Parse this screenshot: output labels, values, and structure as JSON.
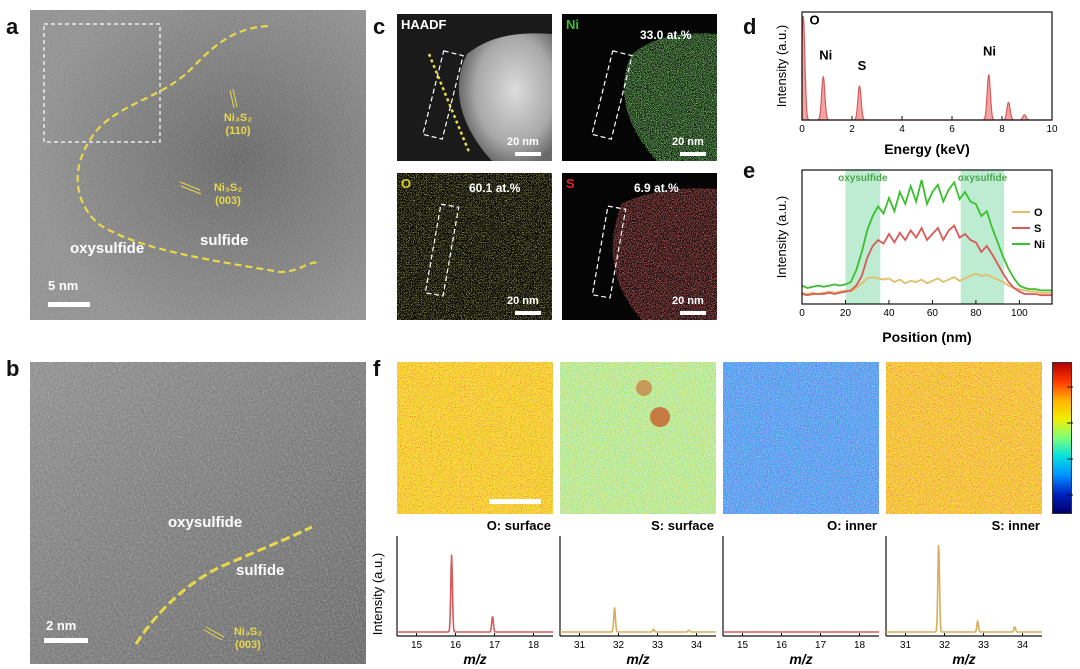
{
  "panels": {
    "a": {
      "label": "a",
      "ni3s2_a": "Ni₃S₂",
      "hkl_a": "(110)",
      "ni3s2_b": "Ni₃S₂",
      "hkl_b": "(003)",
      "oxysulfide": "oxysulfide",
      "sulfide": "sulfide",
      "scale": "5 nm"
    },
    "b": {
      "label": "b",
      "oxysulfide": "oxysulfide",
      "sulfide": "sulfide",
      "scale": "2 nm",
      "ni3s2": "Ni₃S₂",
      "hkl": "(003)"
    },
    "c": {
      "label": "c",
      "haadf": "HAADF",
      "ni": "Ni",
      "ni_pct": "33.0 at.%",
      "o": "O",
      "o_pct": "60.1 at.%",
      "s": "S",
      "s_pct": "6.9 at.%",
      "scale": "20 nm"
    },
    "d": {
      "label": "d"
    },
    "e": {
      "label": "e"
    },
    "f": {
      "label": "f"
    }
  },
  "chart_data": [
    {
      "panel": "d",
      "type": "line",
      "xlabel": "Energy (keV)",
      "ylabel": "Intensity (a.u.)",
      "xlim": [
        0,
        10
      ],
      "xticks": [
        0,
        2,
        4,
        6,
        8,
        10
      ],
      "series": [
        {
          "color": "#d85a5a",
          "peaks": [
            {
              "x": 0.05,
              "h": 1.0
            },
            {
              "x": 0.85,
              "h": 0.42
            },
            {
              "x": 2.3,
              "h": 0.33
            },
            {
              "x": 7.47,
              "h": 0.44
            },
            {
              "x": 8.26,
              "h": 0.17
            },
            {
              "x": 8.9,
              "h": 0.05
            }
          ]
        }
      ],
      "annotations": [
        {
          "text": "O",
          "x": 0.5,
          "y": 0.92
        },
        {
          "text": "Ni",
          "x": 0.95,
          "y": 0.58
        },
        {
          "text": "S",
          "x": 2.4,
          "y": 0.48
        },
        {
          "text": "Ni",
          "x": 7.5,
          "y": 0.62
        }
      ]
    },
    {
      "panel": "e",
      "type": "line",
      "xlabel": "Position (nm)",
      "ylabel": "Intensity (a.u.)",
      "xlim": [
        0,
        115
      ],
      "xticks": [
        0,
        20,
        40,
        60,
        80,
        100
      ],
      "shaded": [
        {
          "label": "oxysulfide",
          "x0": 20,
          "x1": 36
        },
        {
          "label": "oxysulfide",
          "x0": 73,
          "x1": 93
        }
      ],
      "legend": "right",
      "series": [
        {
          "name": "O",
          "color": "#e2bd6a",
          "values": [
            0.06,
            0.05,
            0.06,
            0.05,
            0.06,
            0.07,
            0.06,
            0.07,
            0.08,
            0.07,
            0.1,
            0.14,
            0.18,
            0.19,
            0.18,
            0.17,
            0.18,
            0.15,
            0.17,
            0.14,
            0.16,
            0.15,
            0.17,
            0.14,
            0.16,
            0.18,
            0.15,
            0.17,
            0.19,
            0.16,
            0.18,
            0.2,
            0.22,
            0.2,
            0.21,
            0.19,
            0.17,
            0.15,
            0.12,
            0.1,
            0.09,
            0.08,
            0.07,
            0.07,
            0.06,
            0.06,
            0.06
          ]
        },
        {
          "name": "S",
          "color": "#d85a5a",
          "values": [
            0.05,
            0.04,
            0.05,
            0.05,
            0.05,
            0.06,
            0.05,
            0.06,
            0.07,
            0.08,
            0.12,
            0.2,
            0.35,
            0.45,
            0.5,
            0.47,
            0.55,
            0.48,
            0.56,
            0.5,
            0.58,
            0.52,
            0.6,
            0.5,
            0.55,
            0.6,
            0.5,
            0.58,
            0.62,
            0.52,
            0.55,
            0.5,
            0.48,
            0.4,
            0.45,
            0.38,
            0.3,
            0.22,
            0.15,
            0.1,
            0.07,
            0.05,
            0.05,
            0.05,
            0.04,
            0.04,
            0.04
          ]
        },
        {
          "name": "Ni",
          "color": "#3cbf2f",
          "values": [
            0.12,
            0.1,
            0.11,
            0.12,
            0.11,
            0.12,
            0.13,
            0.12,
            0.13,
            0.15,
            0.25,
            0.4,
            0.58,
            0.7,
            0.78,
            0.72,
            0.85,
            0.74,
            0.9,
            0.8,
            0.95,
            0.82,
            1.0,
            0.8,
            0.9,
            0.96,
            0.82,
            0.92,
            0.98,
            0.84,
            0.9,
            0.82,
            0.8,
            0.7,
            0.74,
            0.6,
            0.48,
            0.36,
            0.26,
            0.18,
            0.12,
            0.1,
            0.09,
            0.09,
            0.08,
            0.08,
            0.08
          ]
        }
      ]
    },
    {
      "panel": "f",
      "type": "line",
      "ylabel": "Intensity (a.u.)",
      "xlabel": "m/z",
      "spectra": [
        {
          "title": "O: surface",
          "color": "#d85a5a",
          "xlim": [
            14.5,
            18.5
          ],
          "xticks": [
            15,
            16,
            17,
            18
          ],
          "peaks": [
            {
              "x": 15.9,
              "h": 0.88
            },
            {
              "x": 16.95,
              "h": 0.18
            }
          ]
        },
        {
          "title": "S: surface",
          "color": "#d8ae5a",
          "xlim": [
            30.5,
            34.5
          ],
          "xticks": [
            31,
            32,
            33,
            34
          ],
          "peaks": [
            {
              "x": 31.9,
              "h": 0.28
            },
            {
              "x": 32.9,
              "h": 0.03
            },
            {
              "x": 33.8,
              "h": 0.02
            }
          ]
        },
        {
          "title": "O: inner",
          "color": "#d85a5a",
          "xlim": [
            14.5,
            18.5
          ],
          "xticks": [
            15,
            16,
            17,
            18
          ],
          "peaks": []
        },
        {
          "title": "S: inner",
          "color": "#d8ae5a",
          "xlim": [
            30.5,
            34.5
          ],
          "xticks": [
            31,
            32,
            33,
            34
          ],
          "peaks": [
            {
              "x": 31.85,
              "h": 1.0
            },
            {
              "x": 32.85,
              "h": 0.12
            },
            {
              "x": 33.8,
              "h": 0.06
            }
          ]
        }
      ]
    }
  ],
  "colors": {
    "yellow_annot": "#e8d84a",
    "map_ni": "#3cbf2f",
    "map_o": "#d9cc2a",
    "map_s": "#d8282a",
    "shade": "#a8e6c3"
  }
}
